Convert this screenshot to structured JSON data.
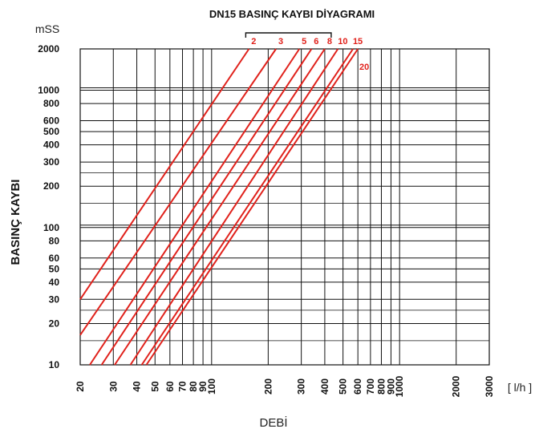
{
  "chart_data": {
    "type": "line",
    "title": "DN15 BASINÇ KAYBI DİYAGRAMI",
    "ylabel": "BASINÇ KAYBI",
    "yunit": "mSS",
    "xlabel": "DEBİ",
    "xunit": "[ l/h ]",
    "xscale": "log",
    "yscale": "log",
    "xlim": [
      20,
      3000
    ],
    "ylim": [
      10,
      2000
    ],
    "grid": true,
    "line_color": "#e0211b",
    "xticks": [
      20,
      30,
      40,
      50,
      60,
      70,
      80,
      90,
      100,
      200,
      300,
      400,
      500,
      600,
      700,
      800,
      900,
      1000,
      2000,
      3000
    ],
    "xtick_labels": [
      "20",
      "30",
      "40",
      "50",
      "60",
      "70",
      "80",
      "90",
      "100",
      "200",
      "300",
      "400",
      "500",
      "600",
      "700",
      "800",
      "900",
      "1000",
      "2000",
      "3000"
    ],
    "yticks": [
      10,
      20,
      30,
      40,
      50,
      60,
      80,
      100,
      200,
      300,
      400,
      500,
      600,
      800,
      1000,
      2000
    ],
    "ytick_labels": [
      "10",
      "20",
      "30",
      "40",
      "50",
      "60",
      "80",
      "100",
      "200",
      "300",
      "400",
      "500",
      "600",
      "800",
      "1000",
      "2000"
    ],
    "series": [
      {
        "name": "2",
        "label_row": 1,
        "x": [
          20,
          158
        ],
        "y": [
          30,
          2000
        ]
      },
      {
        "name": "3",
        "label_row": 1,
        "x": [
          20,
          220
        ],
        "y": [
          16.5,
          2000
        ]
      },
      {
        "name": "5",
        "label_row": 1,
        "x": [
          22.5,
          293
        ],
        "y": [
          10,
          2000
        ]
      },
      {
        "name": "6",
        "label_row": 1,
        "x": [
          26,
          340
        ],
        "y": [
          10,
          2000
        ]
      },
      {
        "name": "8",
        "label_row": 1,
        "x": [
          30.5,
          400
        ],
        "y": [
          10,
          2000
        ]
      },
      {
        "name": "10",
        "label_row": 1,
        "x": [
          37,
          470
        ],
        "y": [
          10,
          2000
        ]
      },
      {
        "name": "15",
        "label_row": 1,
        "x": [
          42.5,
          565
        ],
        "y": [
          10,
          2000
        ]
      },
      {
        "name": "20",
        "label_row": 2,
        "x": [
          45,
          600
        ],
        "y": [
          10,
          2000
        ]
      }
    ]
  }
}
